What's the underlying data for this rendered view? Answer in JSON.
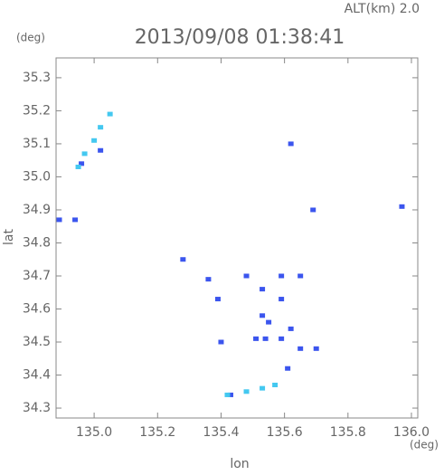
{
  "chart_data": {
    "type": "scatter",
    "title": "2013/09/08 01:38:41",
    "subtitle": "ALT(km) 2.0",
    "x_label": "lon",
    "y_label": "lat",
    "x_unit": "(deg)",
    "y_unit": "(deg)",
    "xlim": [
      134.88,
      136.02
    ],
    "ylim": [
      34.27,
      35.36
    ],
    "xticks": [
      {
        "value": 135.0,
        "label": "135.0"
      },
      135.2,
      135.4,
      135.6,
      135.8,
      {
        "value": 136.0,
        "label": "136.0"
      }
    ],
    "yticks": [
      34.3,
      34.4,
      34.5,
      34.6,
      34.7,
      34.8,
      34.9,
      {
        "value": 35.0,
        "label": "35.0"
      },
      35.1,
      35.2,
      35.3
    ],
    "series": [
      {
        "color": "#3b55ee",
        "x": [
          134.96,
          135.02,
          134.89,
          134.94,
          135.62,
          135.97,
          135.28,
          135.36,
          135.39,
          135.4,
          135.48,
          135.53,
          135.53,
          135.55,
          135.51,
          135.54,
          135.59,
          135.59,
          135.62,
          135.59,
          135.65,
          135.65,
          135.69,
          135.7,
          135.61,
          135.43
        ],
        "values": [
          35.04,
          35.08,
          34.87,
          34.87,
          35.1,
          34.91,
          34.75,
          34.69,
          34.63,
          34.5,
          34.7,
          34.66,
          34.58,
          34.56,
          34.51,
          34.51,
          34.7,
          34.63,
          34.54,
          34.51,
          34.7,
          34.48,
          34.9,
          34.48,
          34.42,
          34.34
        ]
      },
      {
        "color": "#44c8f0",
        "x": [
          134.95,
          134.97,
          135.0,
          135.02,
          135.05,
          135.42,
          135.48,
          135.53,
          135.57
        ],
        "values": [
          35.03,
          35.07,
          35.11,
          35.15,
          35.19,
          34.34,
          34.35,
          34.36,
          34.37
        ]
      }
    ]
  }
}
